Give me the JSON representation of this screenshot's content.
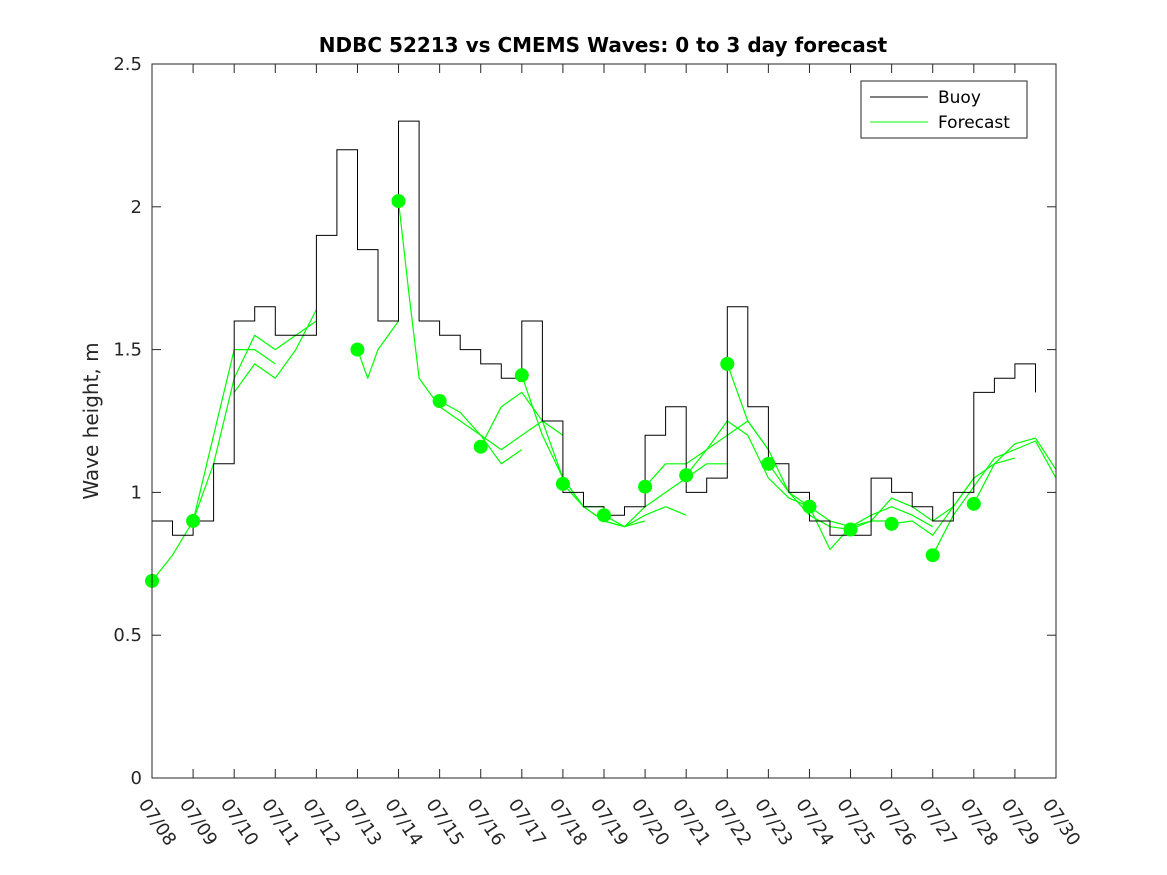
{
  "chart_data": {
    "type": "line",
    "title": "NDBC 52213 vs CMEMS Waves: 0 to 3 day forecast",
    "xlabel": "",
    "ylabel": "Wave height, m",
    "xlim": [
      "07/08",
      "07/30"
    ],
    "ylim": [
      0,
      2.5
    ],
    "x_ticks": [
      "07/08",
      "07/09",
      "07/10",
      "07/11",
      "07/12",
      "07/13",
      "07/14",
      "07/15",
      "07/16",
      "07/17",
      "07/18",
      "07/19",
      "07/20",
      "07/21",
      "07/22",
      "07/23",
      "07/24",
      "07/25",
      "07/26",
      "07/27",
      "07/28",
      "07/29",
      "07/30"
    ],
    "y_ticks": [
      "0",
      "0.5",
      "1",
      "1.5",
      "2",
      "2.5"
    ],
    "legend": {
      "position": "top-right",
      "entries": [
        {
          "name": "Buoy",
          "color": "#000000"
        },
        {
          "name": "Forecast",
          "color": "#00ff00"
        }
      ]
    },
    "colors": {
      "buoy": "#000000",
      "forecast": "#00ff00"
    },
    "buoy": {
      "name": "Buoy",
      "x": [
        "07/08",
        "07/08 12:00",
        "07/09",
        "07/09 12:00",
        "07/10",
        "07/10 12:00",
        "07/11",
        "07/11 12:00",
        "07/12",
        "07/12 12:00",
        "07/13",
        "07/13 12:00",
        "07/14",
        "07/14 12:00",
        "07/15",
        "07/15 12:00",
        "07/16",
        "07/16 12:00",
        "07/17",
        "07/17 12:00",
        "07/18",
        "07/18 12:00",
        "07/19",
        "07/19 12:00",
        "07/20",
        "07/20 12:00",
        "07/21",
        "07/21 12:00",
        "07/22",
        "07/22 12:00",
        "07/23",
        "07/23 12:00",
        "07/24",
        "07/24 12:00",
        "07/25",
        "07/25 12:00",
        "07/26",
        "07/26 12:00",
        "07/27",
        "07/27 12:00",
        "07/28",
        "07/28 12:00",
        "07/29",
        "07/29 12:00"
      ],
      "y": [
        0.9,
        0.85,
        0.9,
        1.1,
        1.6,
        1.65,
        1.55,
        1.55,
        1.9,
        2.2,
        1.85,
        1.6,
        2.3,
        1.6,
        1.55,
        1.5,
        1.45,
        1.4,
        1.6,
        1.25,
        1.0,
        0.95,
        0.92,
        0.95,
        1.2,
        1.3,
        1.0,
        1.05,
        1.65,
        1.3,
        1.1,
        1.0,
        0.9,
        0.85,
        0.85,
        1.05,
        1.0,
        0.95,
        0.9,
        1.0,
        1.35,
        1.4,
        1.45,
        1.35
      ]
    },
    "forecast_runs": [
      {
        "x": [
          "07/08",
          "07/08 12:00",
          "07/09",
          "07/09 12:00",
          "07/10",
          "07/10 12:00",
          "07/11"
        ],
        "y": [
          0.69,
          0.78,
          0.9,
          1.2,
          1.5,
          1.5,
          1.45
        ]
      },
      {
        "x": [
          "07/09",
          "07/09 12:00",
          "07/10",
          "07/10 12:00",
          "07/11",
          "07/11 12:00",
          "07/12"
        ],
        "y": [
          0.9,
          1.1,
          1.4,
          1.55,
          1.5,
          1.55,
          1.6
        ]
      },
      {
        "x": [
          "07/10",
          "07/10 12:00",
          "07/11",
          "07/11 12:00",
          "07/12"
        ],
        "y": [
          1.35,
          1.45,
          1.4,
          1.5,
          1.64
        ]
      },
      {
        "x": [
          "07/13",
          "07/13 06:00",
          "07/13 12:00",
          "07/14"
        ],
        "y": [
          1.5,
          1.4,
          1.5,
          1.6
        ]
      },
      {
        "x": [
          "07/14",
          "07/14 06:00",
          "07/14 12:00",
          "07/15",
          "07/15 12:00",
          "07/16",
          "07/16 12:00",
          "07/17"
        ],
        "y": [
          2.02,
          1.7,
          1.4,
          1.3,
          1.25,
          1.2,
          1.1,
          1.15
        ]
      },
      {
        "x": [
          "07/15",
          "07/15 12:00",
          "07/16",
          "07/16 12:00",
          "07/17",
          "07/17 12:00",
          "07/18"
        ],
        "y": [
          1.32,
          1.28,
          1.2,
          1.15,
          1.2,
          1.25,
          1.2
        ]
      },
      {
        "x": [
          "07/16",
          "07/16 12:00",
          "07/17",
          "07/17 12:00",
          "07/18",
          "07/18 12:00",
          "07/19"
        ],
        "y": [
          1.16,
          1.3,
          1.35,
          1.25,
          1.05,
          0.95,
          0.95
        ]
      },
      {
        "x": [
          "07/17",
          "07/17 12:00",
          "07/18",
          "07/18 12:00",
          "07/19",
          "07/19 12:00",
          "07/20"
        ],
        "y": [
          1.41,
          1.2,
          1.05,
          0.95,
          0.9,
          0.88,
          0.9
        ]
      },
      {
        "x": [
          "07/18",
          "07/18 12:00",
          "07/19",
          "07/19 12:00",
          "07/20",
          "07/20 12:00",
          "07/21"
        ],
        "y": [
          1.03,
          0.95,
          0.9,
          0.88,
          0.92,
          0.95,
          0.92
        ]
      },
      {
        "x": [
          "07/19",
          "07/19 12:00",
          "07/20",
          "07/20 12:00",
          "07/21",
          "07/21 12:00",
          "07/22"
        ],
        "y": [
          0.92,
          0.88,
          0.95,
          1.0,
          1.05,
          1.1,
          1.1
        ]
      },
      {
        "x": [
          "07/20",
          "07/20 12:00",
          "07/21",
          "07/21 12:00",
          "07/22",
          "07/22 12:00",
          "07/23"
        ],
        "y": [
          1.02,
          1.1,
          1.1,
          1.15,
          1.2,
          1.25,
          1.15
        ]
      },
      {
        "x": [
          "07/21",
          "07/21 12:00",
          "07/22",
          "07/22 12:00",
          "07/23",
          "07/23 12:00",
          "07/24"
        ],
        "y": [
          1.06,
          1.15,
          1.25,
          1.2,
          1.05,
          0.98,
          0.95
        ]
      },
      {
        "x": [
          "07/22",
          "07/22 06:00",
          "07/22 12:00",
          "07/23",
          "07/23 12:00",
          "07/24",
          "07/24 12:00",
          "07/25"
        ],
        "y": [
          1.45,
          1.35,
          1.25,
          1.15,
          1.0,
          0.92,
          0.88,
          0.87
        ]
      },
      {
        "x": [
          "07/23",
          "07/23 12:00",
          "07/24",
          "07/24 12:00",
          "07/25",
          "07/25 12:00",
          "07/26"
        ],
        "y": [
          1.1,
          1.0,
          0.95,
          0.9,
          0.88,
          0.9,
          0.9
        ]
      },
      {
        "x": [
          "07/24",
          "07/24 12:00",
          "07/25",
          "07/25 12:00",
          "07/26",
          "07/26 12:00",
          "07/27"
        ],
        "y": [
          0.95,
          0.8,
          0.88,
          0.92,
          0.95,
          0.92,
          0.88
        ]
      },
      {
        "x": [
          "07/25",
          "07/25 12:00",
          "07/26",
          "07/26 12:00",
          "07/27",
          "07/27 12:00",
          "07/28"
        ],
        "y": [
          0.87,
          0.9,
          0.98,
          0.95,
          0.9,
          0.95,
          1.05
        ]
      },
      {
        "x": [
          "07/26",
          "07/26 12:00",
          "07/27",
          "07/27 12:00",
          "07/28",
          "07/28 12:00",
          "07/29"
        ],
        "y": [
          0.89,
          0.9,
          0.85,
          0.95,
          1.05,
          1.1,
          1.12
        ]
      },
      {
        "x": [
          "07/27",
          "07/27 12:00",
          "07/28",
          "07/28 12:00",
          "07/29",
          "07/29 12:00",
          "07/30"
        ],
        "y": [
          0.78,
          0.92,
          1.02,
          1.12,
          1.15,
          1.18,
          1.05
        ]
      },
      {
        "x": [
          "07/28",
          "07/28 12:00",
          "07/29",
          "07/29 12:00",
          "07/30"
        ],
        "y": [
          0.96,
          1.1,
          1.17,
          1.19,
          1.08
        ]
      }
    ],
    "forecast_start_points": {
      "x": [
        "07/08",
        "07/09",
        "07/13",
        "07/14",
        "07/15",
        "07/16",
        "07/17",
        "07/18",
        "07/19",
        "07/20",
        "07/21",
        "07/22",
        "07/23",
        "07/24",
        "07/25",
        "07/26",
        "07/27",
        "07/28"
      ],
      "y": [
        0.69,
        0.9,
        1.5,
        2.02,
        1.32,
        1.16,
        1.41,
        1.03,
        0.92,
        1.02,
        1.06,
        1.45,
        1.1,
        0.95,
        0.87,
        0.89,
        0.78,
        0.96
      ]
    }
  }
}
